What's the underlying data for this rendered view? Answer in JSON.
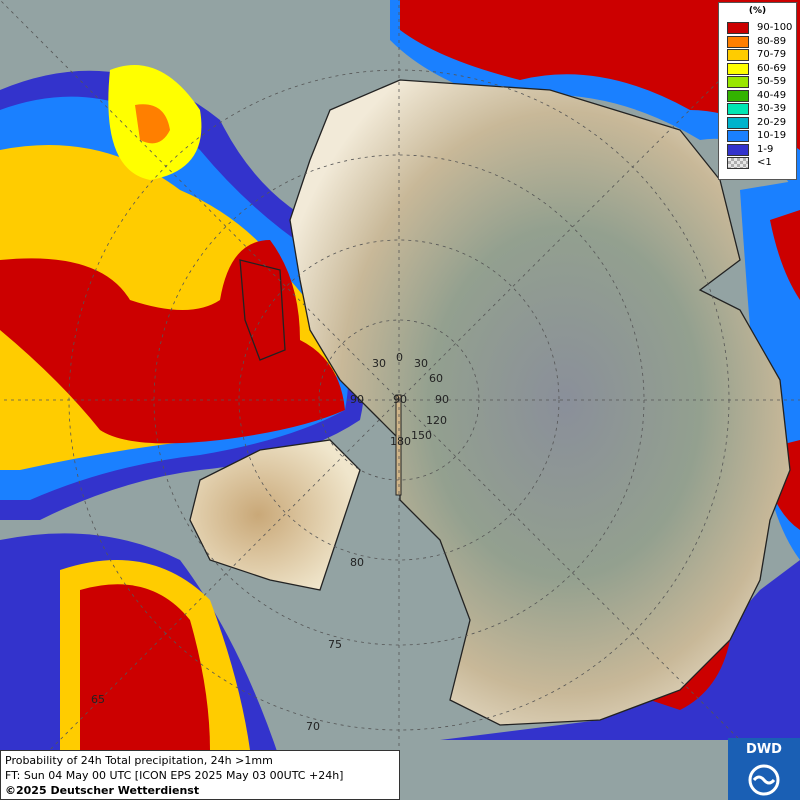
{
  "map": {
    "graticule_labels": [
      "30",
      "0",
      "30",
      "60",
      "90",
      "90",
      "90",
      "120",
      "150",
      "180",
      "80",
      "75",
      "70",
      "65"
    ],
    "legend": {
      "title": "(%)",
      "entries": [
        {
          "label": "90-100",
          "color": "#cc0000"
        },
        {
          "label": "80-89",
          "color": "#ff7f00"
        },
        {
          "label": "70-79",
          "color": "#ffcc00"
        },
        {
          "label": "60-69",
          "color": "#ffff00"
        },
        {
          "label": "50-59",
          "color": "#99e600"
        },
        {
          "label": "40-49",
          "color": "#33b300"
        },
        {
          "label": "30-39",
          "color": "#00e6b3"
        },
        {
          "label": "20-29",
          "color": "#00b3cc"
        },
        {
          "label": "10-19",
          "color": "#1a80ff"
        },
        {
          "label": "1-9",
          "color": "#3333cc"
        },
        {
          "label": "<1",
          "color": "#b0b0b0"
        }
      ]
    },
    "caption": {
      "line1": "Probability of 24h Total precipitation, 24h >1mm",
      "line2": "FT: Sun 04 May 00 UTC [ICON EPS 2025 May 03 00UTC +24h]",
      "line3": "©2025 Deutscher Wetterdienst"
    },
    "logo": "DWD"
  }
}
